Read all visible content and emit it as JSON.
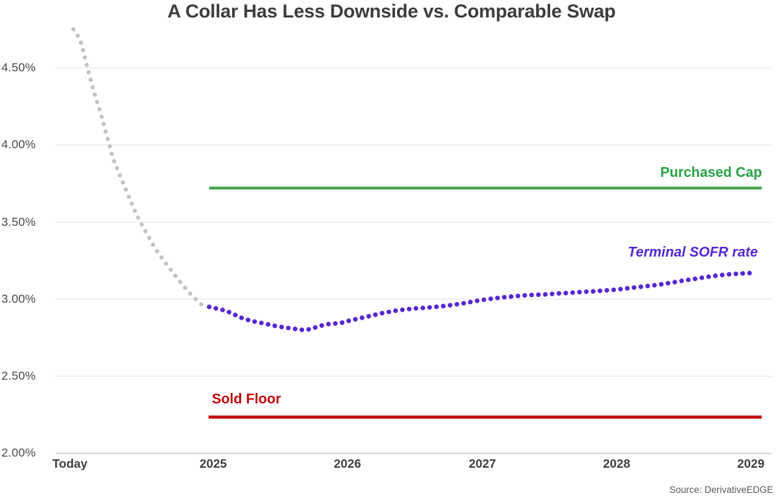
{
  "title": "A Collar Has Less Downside vs. Comparable Swap",
  "source_note": "Source: DerivativeEDGE",
  "colors": {
    "title_text": "#3c3c3c",
    "axis_text": "#474747",
    "tick_text": "#3f3f3f",
    "gridline": "#e6e6e6",
    "axis_line": "#c8c8c8",
    "gray_series": "#c3c3c3",
    "purple_series": "#5627d3",
    "green_cap_line": "#4aa850",
    "green_cap_text": "#27a347",
    "red_floor_line": "#c20808",
    "red_floor_text": "#c20808",
    "source_text": "#595959"
  },
  "chart_data": {
    "type": "line",
    "title": "A Collar Has Less Downside vs. Comparable Swap",
    "source": "Source: DerivativeEDGE",
    "grid": "horizontal-only",
    "legend": "inline-annotations",
    "x_axis": {
      "tick_labels": [
        "Today",
        "2025",
        "2026",
        "2027",
        "2028",
        "2029"
      ],
      "tick_positions_years_from_2025": [
        -1.066,
        0,
        1,
        2,
        3,
        4
      ]
    },
    "y_axis": {
      "tick_labels": [
        "4.50%",
        "4.00%",
        "3.50%",
        "3.00%",
        "2.50%",
        "2.00%"
      ],
      "tick_values": [
        4.5,
        4.0,
        3.5,
        3.0,
        2.5,
        2.0
      ],
      "unit": "%",
      "range": [
        2.0,
        4.85
      ]
    },
    "series": [
      {
        "name": "historical lead-in (unlabeled)",
        "label_visible": false,
        "style": "dotted",
        "color": "#c3c3c3",
        "dot_size": 6.0,
        "dot_gap": 10.9,
        "points": [
          [
            -1.04,
            4.75
          ],
          [
            -1.014,
            4.72
          ],
          [
            -0.978,
            4.65
          ],
          [
            -0.936,
            4.5
          ],
          [
            -0.889,
            4.35
          ],
          [
            -0.837,
            4.205
          ],
          [
            -0.79,
            4.055
          ],
          [
            -0.744,
            3.91
          ],
          [
            -0.702,
            3.82
          ],
          [
            -0.66,
            3.73
          ],
          [
            -0.619,
            3.645
          ],
          [
            -0.577,
            3.56
          ],
          [
            -0.53,
            3.48
          ],
          [
            -0.478,
            3.4
          ],
          [
            -0.426,
            3.32
          ],
          [
            -0.369,
            3.25
          ],
          [
            -0.307,
            3.18
          ],
          [
            -0.244,
            3.11
          ],
          [
            -0.182,
            3.045
          ],
          [
            -0.12,
            2.99
          ],
          [
            -0.062,
            2.945
          ]
        ]
      },
      {
        "name": "Terminal SOFR rate",
        "label_visible": true,
        "style": "dotted",
        "color": "#5627d3",
        "dot_size": 6.6,
        "dot_gap": 9.7,
        "points": [
          [
            -0.03,
            2.95
          ],
          [
            0.02,
            2.94
          ],
          [
            0.07,
            2.93
          ],
          [
            0.12,
            2.915
          ],
          [
            0.17,
            2.895
          ],
          [
            0.22,
            2.875
          ],
          [
            0.28,
            2.86
          ],
          [
            0.33,
            2.85
          ],
          [
            0.39,
            2.84
          ],
          [
            0.44,
            2.83
          ],
          [
            0.49,
            2.822
          ],
          [
            0.54,
            2.815
          ],
          [
            0.59,
            2.81
          ],
          [
            0.64,
            2.802
          ],
          [
            0.69,
            2.8
          ],
          [
            0.73,
            2.808
          ],
          [
            0.78,
            2.822
          ],
          [
            0.82,
            2.832
          ],
          [
            0.87,
            2.84
          ],
          [
            0.91,
            2.842
          ],
          [
            0.96,
            2.848
          ],
          [
            1.0,
            2.858
          ],
          [
            1.05,
            2.868
          ],
          [
            1.1,
            2.878
          ],
          [
            1.15,
            2.888
          ],
          [
            1.2,
            2.898
          ],
          [
            1.25,
            2.908
          ],
          [
            1.3,
            2.916
          ],
          [
            1.35,
            2.924
          ],
          [
            1.4,
            2.93
          ],
          [
            1.45,
            2.935
          ],
          [
            1.5,
            2.94
          ],
          [
            1.56,
            2.943
          ],
          [
            1.62,
            2.947
          ],
          [
            1.68,
            2.952
          ],
          [
            1.74,
            2.958
          ],
          [
            1.8,
            2.965
          ],
          [
            1.86,
            2.973
          ],
          [
            1.92,
            2.982
          ],
          [
            1.98,
            2.992
          ],
          [
            2.04,
            3.0
          ],
          [
            2.1,
            3.006
          ],
          [
            2.16,
            3.012
          ],
          [
            2.22,
            3.017
          ],
          [
            2.28,
            3.022
          ],
          [
            2.34,
            3.026
          ],
          [
            2.4,
            3.028
          ],
          [
            2.46,
            3.03
          ],
          [
            2.52,
            3.034
          ],
          [
            2.58,
            3.038
          ],
          [
            2.64,
            3.04
          ],
          [
            2.7,
            3.044
          ],
          [
            2.76,
            3.048
          ],
          [
            2.82,
            3.05
          ],
          [
            2.88,
            3.054
          ],
          [
            2.94,
            3.058
          ],
          [
            3.0,
            3.062
          ],
          [
            3.06,
            3.068
          ],
          [
            3.12,
            3.074
          ],
          [
            3.18,
            3.08
          ],
          [
            3.24,
            3.086
          ],
          [
            3.3,
            3.092
          ],
          [
            3.36,
            3.1
          ],
          [
            3.42,
            3.108
          ],
          [
            3.48,
            3.118
          ],
          [
            3.54,
            3.126
          ],
          [
            3.6,
            3.134
          ],
          [
            3.66,
            3.142
          ],
          [
            3.72,
            3.15
          ],
          [
            3.78,
            3.156
          ],
          [
            3.84,
            3.161
          ],
          [
            3.9,
            3.165
          ],
          [
            3.96,
            3.168
          ],
          [
            4.02,
            3.17
          ]
        ]
      },
      {
        "name": "Purchased Cap",
        "label_visible": true,
        "style": "solid-hline",
        "color": "#4aa850",
        "line_width": 4.2,
        "value": 3.72,
        "x_start": -0.03,
        "x_end": 4.08
      },
      {
        "name": "Sold Floor",
        "label_visible": true,
        "style": "solid-hline",
        "color": "#c20808",
        "line_width": 4.4,
        "value": 2.235,
        "x_start": -0.035,
        "x_end": 4.08
      }
    ],
    "annotations": [
      {
        "text": "Purchased Cap",
        "color": "#27a347",
        "italic": false,
        "anchor": "right",
        "x_year": 4.08,
        "y_value": 3.82
      },
      {
        "text": "Terminal SOFR rate",
        "color": "#5627d3",
        "italic": true,
        "anchor": "right",
        "x_year": 4.05,
        "y_value": 3.3
      },
      {
        "text": "Sold Floor",
        "color": "#c20808",
        "italic": false,
        "anchor": "left",
        "x_year": -0.01,
        "y_value": 2.35
      }
    ]
  }
}
